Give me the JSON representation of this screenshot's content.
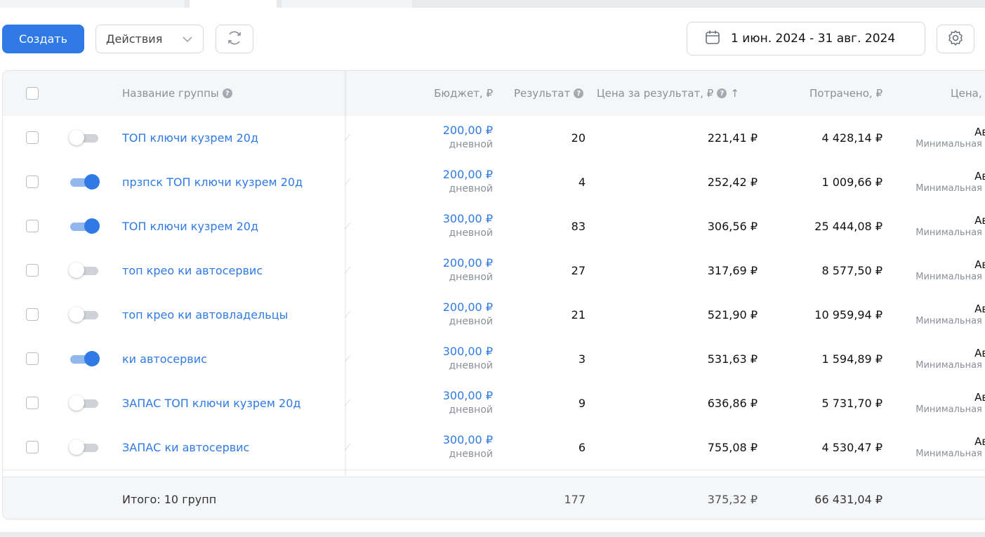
{
  "toolbar": {
    "create_label": "Создать",
    "actions_label": "Действия",
    "date_range": "1 июн. 2024 - 31 авг. 2024"
  },
  "table": {
    "headers": {
      "name": "Название группы",
      "budget": "Бюджет, ₽",
      "result": "Результат",
      "price_per_result": "Цена за результат, ₽",
      "spent": "Потрачено, ₽",
      "price": "Цена,"
    },
    "rows": [
      {
        "enabled": false,
        "name": "ТОП ключи кузрем 20д",
        "budget": "200,00 ₽",
        "budget_period": "дневной",
        "result": "20",
        "price_per_result": "221,41 ₽",
        "spent": "4 428,14 ₽",
        "bid": "Авт",
        "bid_note": "Минимальная ц."
      },
      {
        "enabled": true,
        "name": "прзпск ТОП ключи кузрем 20д",
        "budget": "200,00 ₽",
        "budget_period": "дневной",
        "result": "4",
        "price_per_result": "252,42 ₽",
        "spent": "1 009,66 ₽",
        "bid": "Авт",
        "bid_note": "Минимальная ц."
      },
      {
        "enabled": true,
        "name": "ТОП ключи кузрем 20д",
        "budget": "300,00 ₽",
        "budget_period": "дневной",
        "result": "83",
        "price_per_result": "306,56 ₽",
        "spent": "25 444,08 ₽",
        "bid": "Авт",
        "bid_note": "Минимальная ц."
      },
      {
        "enabled": false,
        "name": "топ крео ки автосервис",
        "budget": "200,00 ₽",
        "budget_period": "дневной",
        "result": "27",
        "price_per_result": "317,69 ₽",
        "spent": "8 577,50 ₽",
        "bid": "Авт",
        "bid_note": "Минимальная ц."
      },
      {
        "enabled": false,
        "name": "топ крео ки автовладельцы",
        "budget": "200,00 ₽",
        "budget_period": "дневной",
        "result": "21",
        "price_per_result": "521,90 ₽",
        "spent": "10 959,94 ₽",
        "bid": "Авт",
        "bid_note": "Минимальная ц."
      },
      {
        "enabled": true,
        "name": "ки автосервис",
        "budget": "300,00 ₽",
        "budget_period": "дневной",
        "result": "3",
        "price_per_result": "531,63 ₽",
        "spent": "1 594,89 ₽",
        "bid": "Авт",
        "bid_note": "Минимальная ц."
      },
      {
        "enabled": false,
        "name": "ЗАПАС ТОП ключи кузрем 20д",
        "budget": "300,00 ₽",
        "budget_period": "дневной",
        "result": "9",
        "price_per_result": "636,86 ₽",
        "spent": "5 731,70 ₽",
        "bid": "Авт",
        "bid_note": "Минимальная ц."
      },
      {
        "enabled": false,
        "name": "ЗАПАС ки автосервис",
        "budget": "300,00 ₽",
        "budget_period": "дневной",
        "result": "6",
        "price_per_result": "755,08 ₽",
        "spent": "4 530,47 ₽",
        "bid": "Авт",
        "bid_note": "Минимальная ц."
      }
    ],
    "footer": {
      "label": "Итого: 10 групп",
      "result": "177",
      "price_per_result": "375,32 ₽",
      "spent": "66 431,04 ₽"
    }
  },
  "colors": {
    "accent": "#2f7ae5",
    "header_bg": "#f5f6f8"
  }
}
